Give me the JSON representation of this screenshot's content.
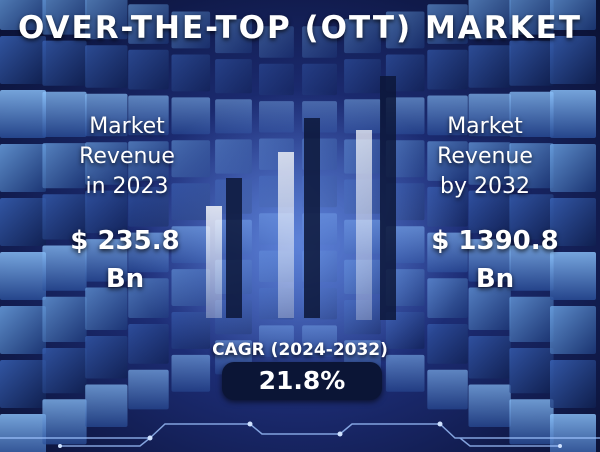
{
  "title": "OVER-THE-TOP (OTT) MARKET",
  "left_panel": {
    "label_lines": [
      "Market",
      "Revenue",
      "in 2023"
    ],
    "value_lines": [
      "$ 235.8",
      "Bn"
    ]
  },
  "right_panel": {
    "label_lines": [
      "Market",
      "Revenue",
      "by 2032"
    ],
    "value_lines": [
      "$ 1390.8",
      "Bn"
    ]
  },
  "cagr": {
    "label": "CAGR (2024-2032)",
    "value": "21.8%"
  },
  "colors": {
    "background": "#1e2f7a",
    "accent_glow": "#5fa0ff",
    "cagr_box": "#0b1536",
    "text": "#ffffff"
  }
}
